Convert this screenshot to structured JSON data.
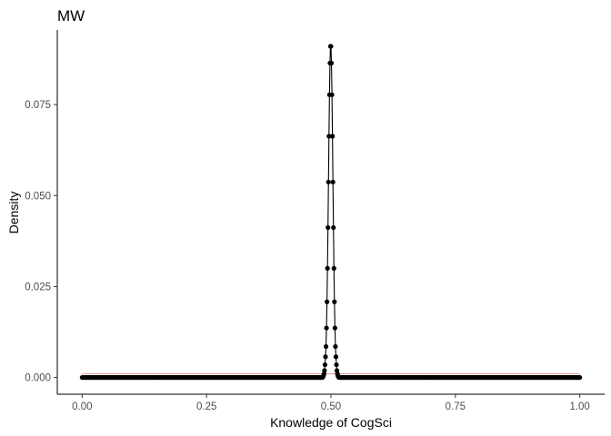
{
  "chart_data": {
    "type": "line",
    "title": "MW",
    "xlabel": "Knowledge of CogSci",
    "ylabel": "Density",
    "xlim": [
      -0.05,
      1.05
    ],
    "ylim": [
      -0.0046,
      0.0955
    ],
    "xticks": [
      0,
      0.25,
      0.5,
      0.75,
      1
    ],
    "xtick_labels": [
      "0.00",
      "0.25",
      "0.50",
      "0.75",
      "1.00"
    ],
    "yticks": [
      0,
      0.025,
      0.05,
      0.075
    ],
    "ytick_labels": [
      "0.000",
      "0.025",
      "0.050",
      "0.075"
    ],
    "grid": false,
    "legend": "none",
    "grid_points": 1001,
    "series": [
      {
        "values_sparse": [
          [
            0.484,
            0.0002
          ],
          [
            0.485,
            0.0005
          ],
          [
            0.486,
            0.001
          ],
          [
            0.487,
            0.0019
          ],
          [
            0.488,
            0.0035
          ],
          [
            0.489,
            0.0057
          ],
          [
            0.49,
            0.0085
          ],
          [
            0.491,
            0.0136
          ],
          [
            0.492,
            0.0208
          ],
          [
            0.493,
            0.03
          ],
          [
            0.494,
            0.0412
          ],
          [
            0.495,
            0.0537
          ],
          [
            0.496,
            0.0663
          ],
          [
            0.497,
            0.0777
          ],
          [
            0.498,
            0.0864
          ],
          [
            0.499,
            0.091
          ],
          [
            0.5,
            0.091
          ],
          [
            0.501,
            0.0864
          ],
          [
            0.502,
            0.0777
          ],
          [
            0.503,
            0.0663
          ],
          [
            0.504,
            0.0537
          ],
          [
            0.505,
            0.0412
          ],
          [
            0.506,
            0.03
          ],
          [
            0.507,
            0.0208
          ],
          [
            0.508,
            0.0136
          ],
          [
            0.509,
            0.0085
          ],
          [
            0.51,
            0.0057
          ],
          [
            0.511,
            0.0035
          ],
          [
            0.512,
            0.0019
          ],
          [
            0.513,
            0.001
          ],
          [
            0.514,
            0.0005
          ],
          [
            0.515,
            0.0002
          ]
        ],
        "line_color": "#000000",
        "point_color": "#000000"
      },
      {
        "y": 0.001,
        "line_color": "#e8a0a0"
      }
    ]
  }
}
